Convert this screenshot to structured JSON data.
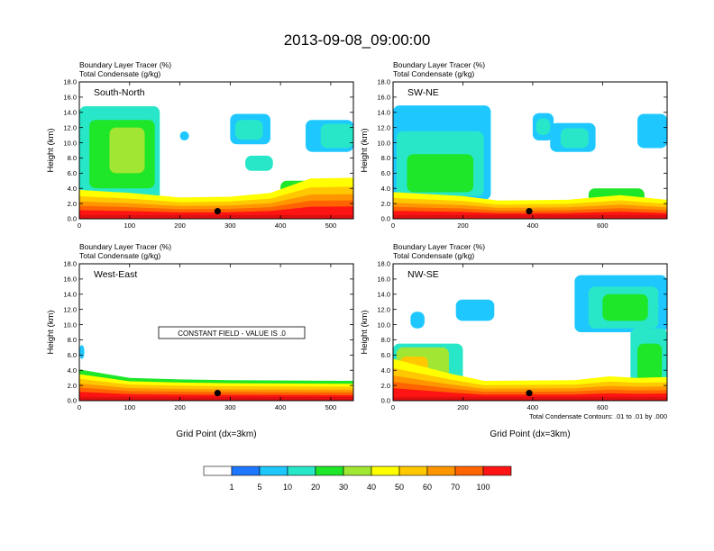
{
  "title": "2013-09-08_09:00:00",
  "legend": {
    "colors": [
      "#ffffff",
      "#1e78ff",
      "#1ec8ff",
      "#28e6c8",
      "#1ee628",
      "#a0e632",
      "#ffff00",
      "#ffc800",
      "#ff9600",
      "#ff6400",
      "#ff1414"
    ],
    "labels": [
      "1",
      "5",
      "10",
      "20",
      "30",
      "40",
      "50",
      "60",
      "70",
      "100"
    ]
  },
  "footnote": "Total Condensate Contours: .01 to .01 by .000",
  "chart_data": [
    {
      "type": "heatmap",
      "panel_label": "South-North",
      "title_line1": "Boundary Layer Tracer    (%)",
      "title_line2": "Total Condensate    (g/kg)",
      "ylabel": "Height (km)",
      "xlabel": "",
      "ylim": [
        0,
        18
      ],
      "xlim": [
        0,
        545
      ],
      "y_ticks": [
        "0.0",
        "2.0",
        "4.0",
        "6.0",
        "8.0",
        "10.0",
        "12.0",
        "14.0",
        "16.0",
        "18.0"
      ],
      "x_ticks": [
        {
          "v": 0,
          "t": "0"
        },
        {
          "v": 100,
          "t": "100"
        },
        {
          "v": 200,
          "t": "200"
        },
        {
          "v": 300,
          "t": "300"
        },
        {
          "v": 400,
          "t": "400"
        },
        {
          "v": 500,
          "t": "500"
        }
      ],
      "marker_x": 275,
      "clouds": [
        {
          "x": 0,
          "y": 2.2,
          "w": 160,
          "h": 12.6,
          "c": 3
        },
        {
          "x": 20,
          "y": 4,
          "w": 130,
          "h": 9,
          "c": 4
        },
        {
          "x": 60,
          "y": 6,
          "w": 70,
          "h": 6,
          "c": 5
        },
        {
          "x": 200,
          "y": 10.3,
          "w": 18,
          "h": 1.2,
          "c": 2
        },
        {
          "x": 300,
          "y": 9.8,
          "w": 80,
          "h": 4,
          "c": 2
        },
        {
          "x": 310,
          "y": 10.4,
          "w": 55,
          "h": 2.6,
          "c": 3
        },
        {
          "x": 330,
          "y": 6.3,
          "w": 55,
          "h": 2,
          "c": 3
        },
        {
          "x": 450,
          "y": 8.8,
          "w": 95,
          "h": 4.2,
          "c": 2
        },
        {
          "x": 480,
          "y": 9.3,
          "w": 65,
          "h": 3.2,
          "c": 3
        },
        {
          "x": 400,
          "y": 1.8,
          "w": 145,
          "h": 3.2,
          "c": 4
        }
      ],
      "bl_profile": [
        [
          0,
          3.8
        ],
        [
          100,
          3.4
        ],
        [
          200,
          2.8
        ],
        [
          300,
          2.9
        ],
        [
          380,
          3.4
        ],
        [
          460,
          5.3
        ],
        [
          545,
          5.4
        ]
      ],
      "bl_bands": [
        {
          "f": 1.0,
          "c": 6
        },
        {
          "f": 0.78,
          "c": 7
        },
        {
          "f": 0.6,
          "c": 8
        },
        {
          "f": 0.45,
          "c": 9
        },
        {
          "f": 0.3,
          "c": 10
        }
      ]
    },
    {
      "type": "heatmap",
      "panel_label": "SW-NE",
      "title_line1": "Boundary Layer Tracer    (%)",
      "title_line2": "Total Condensate    (g/kg)",
      "ylabel": "Height (km)",
      "xlabel": "",
      "ylim": [
        0,
        18
      ],
      "xlim": [
        0,
        785
      ],
      "y_ticks": [
        "0.0",
        "2.0",
        "4.0",
        "6.0",
        "8.0",
        "10.0",
        "12.0",
        "14.0",
        "16.0",
        "18.0"
      ],
      "x_ticks": [
        {
          "v": 0,
          "t": "0"
        },
        {
          "v": 200,
          "t": "200"
        },
        {
          "v": 400,
          "t": "400"
        },
        {
          "v": 600,
          "t": "600"
        }
      ],
      "marker_x": 390,
      "clouds": [
        {
          "x": 0,
          "y": 2.5,
          "w": 280,
          "h": 12.4,
          "c": 2
        },
        {
          "x": 10,
          "y": 3,
          "w": 250,
          "h": 8.5,
          "c": 3
        },
        {
          "x": 40,
          "y": 3.5,
          "w": 190,
          "h": 5,
          "c": 4
        },
        {
          "x": 400,
          "y": 10.3,
          "w": 60,
          "h": 3.6,
          "c": 2
        },
        {
          "x": 410,
          "y": 11,
          "w": 40,
          "h": 2.2,
          "c": 3
        },
        {
          "x": 450,
          "y": 8.8,
          "w": 130,
          "h": 3.8,
          "c": 2
        },
        {
          "x": 480,
          "y": 9.3,
          "w": 80,
          "h": 2.6,
          "c": 3
        },
        {
          "x": 700,
          "y": 9.3,
          "w": 85,
          "h": 4.5,
          "c": 2
        },
        {
          "x": 560,
          "y": 1.6,
          "w": 160,
          "h": 2.4,
          "c": 4
        }
      ],
      "bl_profile": [
        [
          0,
          3.5
        ],
        [
          200,
          3.0
        ],
        [
          300,
          2.4
        ],
        [
          500,
          2.5
        ],
        [
          650,
          3.1
        ],
        [
          785,
          2.5
        ]
      ],
      "bl_bands": [
        {
          "f": 1.0,
          "c": 6
        },
        {
          "f": 0.78,
          "c": 7
        },
        {
          "f": 0.6,
          "c": 8
        },
        {
          "f": 0.45,
          "c": 9
        },
        {
          "f": 0.3,
          "c": 10
        }
      ]
    },
    {
      "type": "heatmap",
      "panel_label": "West-East",
      "annotation": "CONSTANT FIELD - VALUE IS .0",
      "title_line1": "Boundary Layer Tracer    (%)",
      "title_line2": "Total Condensate    (g/kg)",
      "ylabel": "Height (km)",
      "xlabel": "Grid Point (dx=3km)",
      "ylim": [
        0,
        18
      ],
      "xlim": [
        0,
        545
      ],
      "y_ticks": [
        "0.0",
        "2.0",
        "4.0",
        "6.0",
        "8.0",
        "10.0",
        "12.0",
        "14.0",
        "16.0",
        "18.0"
      ],
      "x_ticks": [
        {
          "v": 0,
          "t": "0"
        },
        {
          "v": 100,
          "t": "100"
        },
        {
          "v": 200,
          "t": "200"
        },
        {
          "v": 300,
          "t": "300"
        },
        {
          "v": 400,
          "t": "400"
        },
        {
          "v": 500,
          "t": "500"
        }
      ],
      "marker_x": 275,
      "clouds": [
        {
          "x": 0,
          "y": 5.5,
          "w": 10,
          "h": 1.8,
          "c": 2
        }
      ],
      "bl_profile": [
        [
          0,
          4.1
        ],
        [
          100,
          3.0
        ],
        [
          200,
          2.8
        ],
        [
          300,
          2.7
        ],
        [
          545,
          2.6
        ]
      ],
      "bl_bands": [
        {
          "f": 1.0,
          "c": 4
        },
        {
          "f": 0.85,
          "c": 6
        },
        {
          "f": 0.7,
          "c": 7
        },
        {
          "f": 0.55,
          "c": 8
        },
        {
          "f": 0.42,
          "c": 9
        },
        {
          "f": 0.28,
          "c": 10
        }
      ]
    },
    {
      "type": "heatmap",
      "panel_label": "NW-SE",
      "title_line1": "Boundary Layer Tracer    (%)",
      "title_line2": "Total Condensate    (g/kg)",
      "ylabel": "Height (km)",
      "xlabel": "Grid Point (dx=3km)",
      "ylim": [
        0,
        18
      ],
      "xlim": [
        0,
        785
      ],
      "y_ticks": [
        "0.0",
        "2.0",
        "4.0",
        "6.0",
        "8.0",
        "10.0",
        "12.0",
        "14.0",
        "16.0",
        "18.0"
      ],
      "x_ticks": [
        {
          "v": 0,
          "t": "0"
        },
        {
          "v": 200,
          "t": "200"
        },
        {
          "v": 400,
          "t": "400"
        },
        {
          "v": 600,
          "t": "600"
        }
      ],
      "marker_x": 390,
      "clouds": [
        {
          "x": 50,
          "y": 9.5,
          "w": 40,
          "h": 2.2,
          "c": 2
        },
        {
          "x": 180,
          "y": 10.5,
          "w": 110,
          "h": 2.8,
          "c": 2
        },
        {
          "x": 0,
          "y": 2.5,
          "w": 200,
          "h": 5,
          "c": 3
        },
        {
          "x": 10,
          "y": 3,
          "w": 150,
          "h": 4,
          "c": 5
        },
        {
          "x": 20,
          "y": 3.3,
          "w": 80,
          "h": 2.5,
          "c": 7
        },
        {
          "x": 520,
          "y": 9,
          "w": 265,
          "h": 7.5,
          "c": 2
        },
        {
          "x": 560,
          "y": 9.5,
          "w": 200,
          "h": 5.5,
          "c": 3
        },
        {
          "x": 600,
          "y": 10.5,
          "w": 130,
          "h": 3.5,
          "c": 4
        },
        {
          "x": 680,
          "y": 0.5,
          "w": 105,
          "h": 9,
          "c": 3
        },
        {
          "x": 700,
          "y": 1.5,
          "w": 70,
          "h": 6,
          "c": 4
        }
      ],
      "bl_profile": [
        [
          0,
          5.5
        ],
        [
          160,
          3.6
        ],
        [
          260,
          2.6
        ],
        [
          520,
          2.7
        ],
        [
          620,
          3.2
        ],
        [
          700,
          3.0
        ],
        [
          785,
          3.1
        ]
      ],
      "bl_bands": [
        {
          "f": 1.0,
          "c": 6
        },
        {
          "f": 0.78,
          "c": 7
        },
        {
          "f": 0.6,
          "c": 8
        },
        {
          "f": 0.45,
          "c": 9
        },
        {
          "f": 0.3,
          "c": 10
        }
      ]
    }
  ]
}
